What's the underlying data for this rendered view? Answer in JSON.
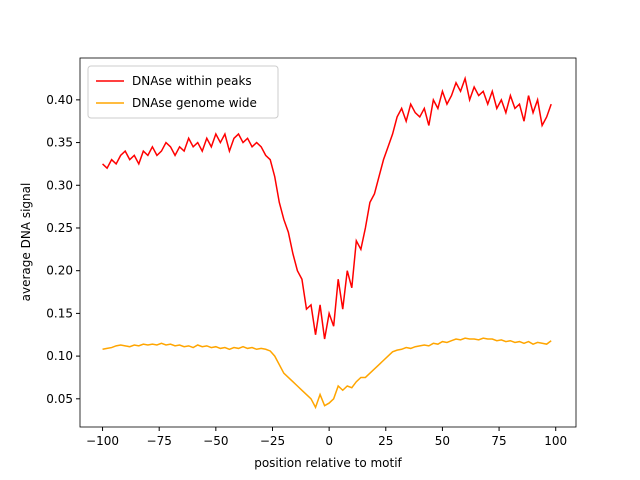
{
  "chart_data": {
    "type": "line",
    "xlabel": "position relative to motif",
    "ylabel": "average DNA signal",
    "x": [
      -100,
      -98,
      -96,
      -94,
      -92,
      -90,
      -88,
      -86,
      -84,
      -82,
      -80,
      -78,
      -76,
      -74,
      -72,
      -70,
      -68,
      -66,
      -64,
      -62,
      -60,
      -58,
      -56,
      -54,
      -52,
      -50,
      -48,
      -46,
      -44,
      -42,
      -40,
      -38,
      -36,
      -34,
      -32,
      -30,
      -28,
      -26,
      -24,
      -22,
      -20,
      -18,
      -16,
      -14,
      -12,
      -10,
      -8,
      -6,
      -4,
      -2,
      0,
      2,
      4,
      6,
      8,
      10,
      12,
      14,
      16,
      18,
      20,
      22,
      24,
      26,
      28,
      30,
      32,
      34,
      36,
      38,
      40,
      42,
      44,
      46,
      48,
      50,
      52,
      54,
      56,
      58,
      60,
      62,
      64,
      66,
      68,
      70,
      72,
      74,
      76,
      78,
      80,
      82,
      84,
      86,
      88,
      90,
      92,
      94,
      96,
      98
    ],
    "series": [
      {
        "name": "DNAse within peaks",
        "color": "#ff0000",
        "values": [
          0.325,
          0.32,
          0.33,
          0.325,
          0.335,
          0.34,
          0.33,
          0.335,
          0.325,
          0.34,
          0.335,
          0.345,
          0.335,
          0.34,
          0.35,
          0.345,
          0.335,
          0.345,
          0.34,
          0.355,
          0.345,
          0.35,
          0.34,
          0.355,
          0.345,
          0.36,
          0.35,
          0.36,
          0.34,
          0.355,
          0.36,
          0.35,
          0.355,
          0.345,
          0.35,
          0.345,
          0.335,
          0.33,
          0.31,
          0.28,
          0.26,
          0.245,
          0.22,
          0.2,
          0.19,
          0.155,
          0.16,
          0.125,
          0.16,
          0.12,
          0.15,
          0.135,
          0.19,
          0.155,
          0.2,
          0.18,
          0.235,
          0.225,
          0.25,
          0.28,
          0.29,
          0.31,
          0.33,
          0.345,
          0.36,
          0.38,
          0.39,
          0.375,
          0.395,
          0.385,
          0.38,
          0.39,
          0.37,
          0.4,
          0.39,
          0.41,
          0.395,
          0.405,
          0.42,
          0.41,
          0.425,
          0.4,
          0.415,
          0.405,
          0.41,
          0.395,
          0.41,
          0.39,
          0.4,
          0.385,
          0.405,
          0.39,
          0.395,
          0.375,
          0.405,
          0.385,
          0.4,
          0.37,
          0.38,
          0.395
        ]
      },
      {
        "name": "DNAse genome wide",
        "color": "#ffa500",
        "values": [
          0.108,
          0.109,
          0.11,
          0.112,
          0.113,
          0.112,
          0.111,
          0.113,
          0.112,
          0.114,
          0.113,
          0.114,
          0.113,
          0.115,
          0.113,
          0.114,
          0.112,
          0.113,
          0.111,
          0.112,
          0.11,
          0.113,
          0.111,
          0.112,
          0.11,
          0.111,
          0.109,
          0.11,
          0.108,
          0.11,
          0.109,
          0.111,
          0.109,
          0.11,
          0.108,
          0.109,
          0.108,
          0.106,
          0.1,
          0.09,
          0.08,
          0.075,
          0.07,
          0.065,
          0.06,
          0.055,
          0.05,
          0.04,
          0.055,
          0.042,
          0.045,
          0.05,
          0.065,
          0.06,
          0.065,
          0.063,
          0.07,
          0.075,
          0.075,
          0.08,
          0.085,
          0.09,
          0.095,
          0.1,
          0.105,
          0.107,
          0.108,
          0.11,
          0.109,
          0.111,
          0.112,
          0.113,
          0.112,
          0.115,
          0.114,
          0.117,
          0.116,
          0.118,
          0.12,
          0.119,
          0.121,
          0.12,
          0.12,
          0.119,
          0.121,
          0.12,
          0.12,
          0.118,
          0.119,
          0.117,
          0.118,
          0.116,
          0.117,
          0.115,
          0.117,
          0.114,
          0.116,
          0.115,
          0.114,
          0.118
        ]
      }
    ],
    "xlim": [
      -109.95,
      108.95
    ],
    "ylim": [
      0.017,
      0.449
    ],
    "xticks": [
      {
        "value": -100,
        "label": "−100"
      },
      {
        "value": -75,
        "label": "−75"
      },
      {
        "value": -50,
        "label": "−50"
      },
      {
        "value": -25,
        "label": "−25"
      },
      0,
      25,
      50,
      75,
      100
    ],
    "yticks": [
      0.05,
      {
        "value": 0.1,
        "label": "0.10"
      },
      0.15,
      {
        "value": 0.2,
        "label": "0.20"
      },
      0.25,
      {
        "value": 0.3,
        "label": "0.30"
      },
      0.35,
      {
        "value": 0.4,
        "label": "0.40"
      }
    ],
    "legend": "upper left",
    "grid": false
  }
}
